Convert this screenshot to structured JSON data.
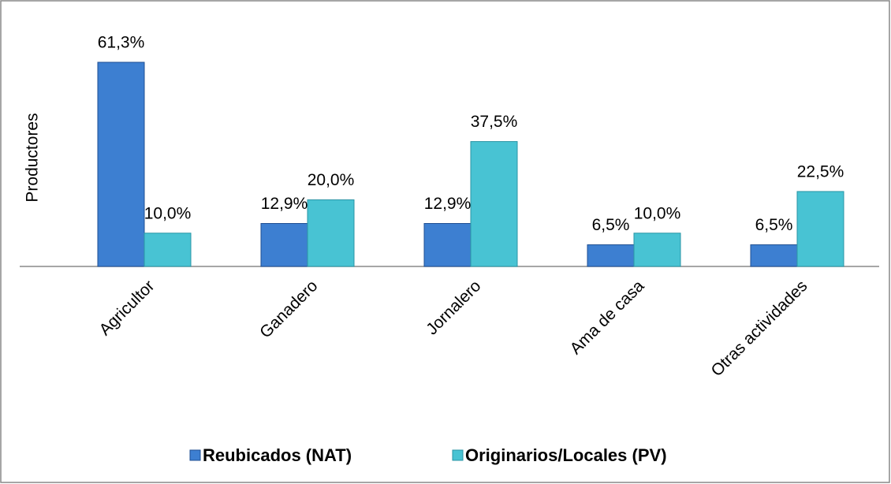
{
  "chart_data": {
    "type": "bar",
    "y_label": "Productores",
    "categories": [
      "Agricultor",
      "Ganadero",
      "Jornalero",
      "Ama de casa",
      "Otras actividades"
    ],
    "series": [
      {
        "name": "Reubicados (NAT)",
        "color": "#3d7fd1",
        "values": [
          61.3,
          12.9,
          12.9,
          6.5,
          6.5
        ],
        "value_labels": [
          "61,3%",
          "12,9%",
          "12,9%",
          "6,5%",
          "6,5%"
        ]
      },
      {
        "name": "Originarios/Locales (PV)",
        "color": "#48c3d3",
        "values": [
          10.0,
          20.0,
          37.5,
          10.0,
          22.5
        ],
        "value_labels": [
          "10,0%",
          "20,0%",
          "37,5%",
          "10,0%",
          "22,5%"
        ]
      }
    ],
    "ylim": [
      0,
      65
    ]
  }
}
